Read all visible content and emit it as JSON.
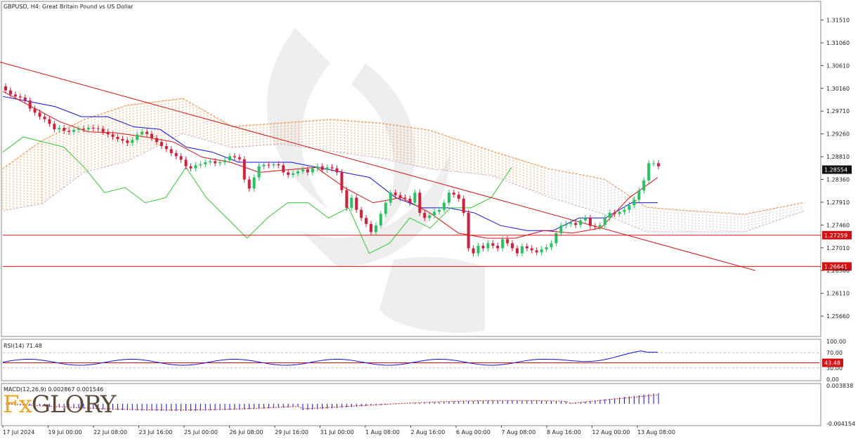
{
  "header": {
    "title": "GBPUSD, H4:  Great Britain Pound vs US Dollar"
  },
  "price_axis": {
    "ticks": [
      "1.31510",
      "1.31060",
      "1.30610",
      "1.30160",
      "1.29710",
      "1.29260",
      "1.28810",
      "1.28360",
      "1.27910",
      "1.27460",
      "1.27010",
      "1.26560",
      "1.26110",
      "1.25660"
    ],
    "current_price": "1.28554",
    "level_labels": [
      "1.27259",
      "1.26641"
    ]
  },
  "time_axis": {
    "ticks": [
      "17 Jul 2024",
      "19 Jul 00:00",
      "22 Jul 08:00",
      "23 Jul 16:00",
      "25 Jul 00:00",
      "26 Jul 08:00",
      "29 Jul 16:00",
      "31 Jul 00:00",
      "1 Aug 08:00",
      "2 Aug 16:00",
      "6 Aug 00:00",
      "7 Aug 08:00",
      "8 Aug 16:00",
      "12 Aug 00:00",
      "13 Aug 08:00"
    ]
  },
  "rsi_panel": {
    "label": "RSI(14) 71.48",
    "ticks": [
      "100.00",
      "70.00",
      "30.00",
      "0.00"
    ],
    "level_label": "43.48"
  },
  "macd_panel": {
    "label": "MACD(12,26,9) 0.002867 0.001546",
    "ticks": [
      "0.003838",
      "-0.004154"
    ]
  },
  "logo": {
    "text_a": "Fx",
    "text_b": "GLORY"
  },
  "colors": {
    "bull": "#22c55e",
    "bear": "#d61e3a",
    "kijun": "#1010e0",
    "tenkan": "#e01010",
    "chikou": "#33cc33",
    "cloud_up": "#f08c3c",
    "cloud_down": "#c8b0c8",
    "trend": "#d61010",
    "grid": "#cfcfcf"
  },
  "chart_data": {
    "type": "candlestick",
    "symbol": "GBPUSD",
    "timeframe": "H4",
    "ylim": [
      1.253,
      1.3185
    ],
    "x_labels": [
      "17 Jul 2024",
      "19 Jul 00:00",
      "22 Jul 08:00",
      "23 Jul 16:00",
      "25 Jul 00:00",
      "26 Jul 08:00",
      "29 Jul 16:00",
      "31 Jul 00:00",
      "1 Aug 08:00",
      "2 Aug 16:00",
      "6 Aug 00:00",
      "7 Aug 08:00",
      "8 Aug 16:00",
      "12 Aug 00:00",
      "13 Aug 08:00"
    ],
    "candle_close": [
      1.3012,
      1.3004,
      1.3,
      1.2998,
      1.2992,
      1.2976,
      1.2968,
      1.296,
      1.2955,
      1.2946,
      1.2935,
      1.2938,
      1.2932,
      1.293,
      1.2934,
      1.2936,
      1.2935,
      1.2938,
      1.2937,
      1.2936,
      1.293,
      1.2925,
      1.292,
      1.2916,
      1.2913,
      1.2908,
      1.2914,
      1.2925,
      1.293,
      1.2926,
      1.2918,
      1.291,
      1.2902,
      1.2896,
      1.2888,
      1.2882,
      1.2875,
      1.2862,
      1.2858,
      1.2864,
      1.2866,
      1.287,
      1.2872,
      1.2868,
      1.287,
      1.2874,
      1.2882,
      1.288,
      1.2876,
      1.2836,
      1.2818,
      1.284,
      1.2862,
      1.2865,
      1.2864,
      1.2866,
      1.2864,
      1.285,
      1.2845,
      1.2848,
      1.2852,
      1.2856,
      1.285,
      1.2858,
      1.2862,
      1.2855,
      1.286,
      1.2858,
      1.285,
      1.2815,
      1.278,
      1.28,
      1.2776,
      1.276,
      1.2748,
      1.2732,
      1.2745,
      1.2768,
      1.279,
      1.281,
      1.2805,
      1.28,
      1.2798,
      1.279,
      1.281,
      1.277,
      1.276,
      1.2765,
      1.2772,
      1.2776,
      1.279,
      1.281,
      1.2806,
      1.2798,
      1.277,
      1.27,
      1.269,
      1.2705,
      1.27,
      1.271,
      1.2705,
      1.27,
      1.2718,
      1.271,
      1.27,
      1.269,
      1.2704,
      1.27,
      1.2696,
      1.2692,
      1.2698,
      1.2702,
      1.271,
      1.273,
      1.2745,
      1.2748,
      1.275,
      1.2746,
      1.2755,
      1.276,
      1.2744,
      1.2742,
      1.2746,
      1.276,
      1.277,
      1.2768,
      1.2772,
      1.2776,
      1.2785,
      1.2796,
      1.2814,
      1.2834,
      1.2868,
      1.2868,
      1.2862
    ],
    "kijun_sen": [
      1.3,
      1.299,
      1.298,
      1.296,
      1.296,
      1.294,
      1.2935,
      1.29,
      1.289,
      1.287,
      1.287,
      1.287,
      1.286,
      1.285,
      1.284,
      1.28,
      1.278,
      1.278,
      1.277,
      1.2745,
      1.2735,
      1.2735,
      1.276,
      1.276,
      1.279,
      1.279
    ],
    "tenkan_sen": [
      1.301,
      1.298,
      1.295,
      1.293,
      1.2928,
      1.292,
      1.291,
      1.288,
      1.287,
      1.285,
      1.2855,
      1.286,
      1.282,
      1.279,
      1.28,
      1.277,
      1.273,
      1.272,
      1.272,
      1.2735,
      1.273,
      1.274,
      1.28,
      1.284
    ],
    "chikou_span": [
      1.289,
      1.292,
      1.291,
      1.29,
      1.286,
      1.281,
      1.282,
      1.279,
      1.28,
      1.286,
      1.28,
      1.276,
      1.272,
      1.276,
      1.279,
      1.279,
      1.276,
      1.278,
      1.269,
      1.271,
      1.276,
      1.274,
      1.278,
      1.278,
      1.28,
      1.286
    ],
    "trendline": [
      [
        0,
        1.3068
      ],
      [
        1075,
        1.2656
      ]
    ],
    "horizontal_levels": [
      1.27259,
      1.26641
    ],
    "current_price": 1.28554,
    "rsi": {
      "label": "RSI(14) 71.48",
      "last": 71.48,
      "levels": [
        70,
        30
      ],
      "marked_level": 43.48
    },
    "macd": {
      "label": "MACD(12,26,9) 0.002867 0.001546",
      "main": 0.002867,
      "signal": 0.001546,
      "range": [
        -0.004154,
        0.003838
      ]
    }
  }
}
